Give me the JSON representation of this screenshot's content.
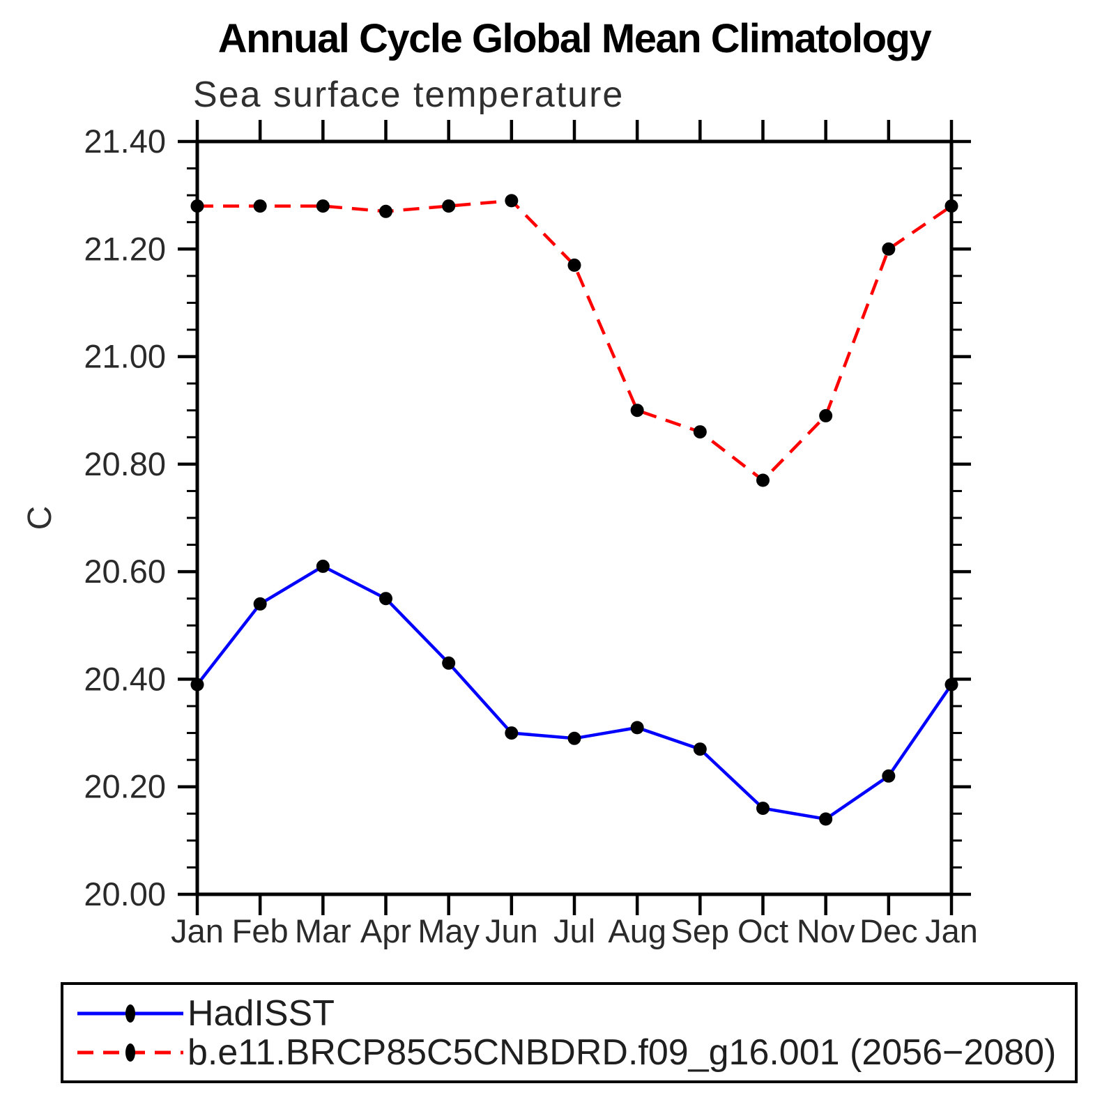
{
  "header": {
    "title": "Annual Cycle Global Mean Climatology",
    "subtitle": "Sea surface temperature"
  },
  "chart_data": {
    "type": "line",
    "title": "Annual Cycle Global Mean Climatology",
    "subtitle": "Sea surface temperature",
    "ylabel": "C",
    "categories": [
      "Jan",
      "Feb",
      "Mar",
      "Apr",
      "May",
      "Jun",
      "Jul",
      "Aug",
      "Sep",
      "Oct",
      "Nov",
      "Dec",
      "Jan"
    ],
    "series": [
      {
        "name": "HadISST",
        "color": "#0000ff",
        "line_style": "solid",
        "values": [
          20.39,
          20.54,
          20.61,
          20.55,
          20.43,
          20.3,
          20.29,
          20.31,
          20.27,
          20.16,
          20.14,
          20.22,
          20.39
        ]
      },
      {
        "name": "b.e11.BRCP85C5CNBDRD.f09_g16.001 (2056−2080)",
        "color": "#ff0000",
        "line_style": "dashed",
        "values": [
          21.28,
          21.28,
          21.28,
          21.27,
          21.28,
          21.29,
          21.17,
          20.9,
          20.86,
          20.77,
          20.89,
          21.2,
          21.28
        ]
      }
    ],
    "ylim": [
      20.0,
      21.4
    ],
    "ytick_major_interval": 0.2,
    "ytick_minor_interval": 0.05,
    "ytick_label_format": "2dp",
    "marker": "filled-circle",
    "marker_color": "#000000",
    "axis_color": "#000000",
    "grid": "off",
    "legend_position": "bottom"
  }
}
